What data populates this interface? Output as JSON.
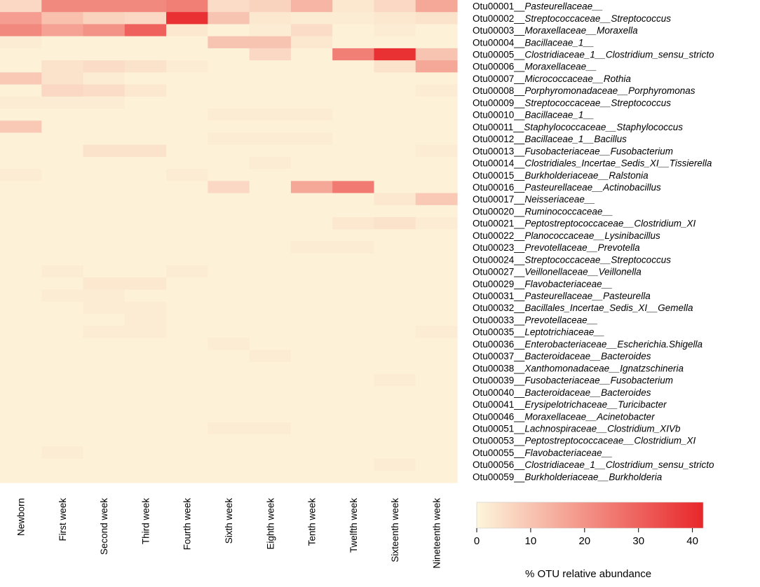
{
  "chart_data": {
    "type": "heatmap",
    "title": "",
    "legend_title": "% OTU relative abundance",
    "legend_range": [
      0,
      42
    ],
    "legend_ticks": [
      0,
      10,
      20,
      30,
      40
    ],
    "color_low": "#fdf6dc",
    "color_high": "#e8262a",
    "columns": [
      "Newborn",
      "First week",
      "Second week",
      "Third week",
      "Fourth week",
      "Sixth week",
      "Eighth week",
      "Tenth week",
      "Twelfth week",
      "Sixteenth week",
      "Nineteenth week"
    ],
    "rows": [
      {
        "id": "Otu00001",
        "taxon": "Pasteurellaceae__"
      },
      {
        "id": "Otu00002",
        "taxon": "Streptococcaceae__Streptococcus"
      },
      {
        "id": "Otu00003",
        "taxon": "Moraxellaceae__Moraxella"
      },
      {
        "id": "Otu00004",
        "taxon": "Bacillaceae_1__"
      },
      {
        "id": "Otu00005",
        "taxon": "Clostridiaceae_1__Clostridium_sensu_stricto"
      },
      {
        "id": "Otu00006",
        "taxon": "Moraxellaceae__"
      },
      {
        "id": "Otu00007",
        "taxon": "Micrococcaceae__Rothia"
      },
      {
        "id": "Otu00008",
        "taxon": "Porphyromonadaceae__Porphyromonas"
      },
      {
        "id": "Otu00009",
        "taxon": "Streptococcaceae__Streptococcus"
      },
      {
        "id": "Otu00010",
        "taxon": "Bacillaceae_1__"
      },
      {
        "id": "Otu00011",
        "taxon": "Staphylococcaceae__Staphylococcus"
      },
      {
        "id": "Otu00012",
        "taxon": "Bacillaceae_1__Bacillus"
      },
      {
        "id": "Otu00013",
        "taxon": "Fusobacteriaceae__Fusobacterium"
      },
      {
        "id": "Otu00014",
        "taxon": "Clostridiales_Incertae_Sedis_XI__Tissierella"
      },
      {
        "id": "Otu00015",
        "taxon": "Burkholderiaceae__Ralstonia"
      },
      {
        "id": "Otu00016",
        "taxon": "Pasteurellaceae__Actinobacillus"
      },
      {
        "id": "Otu00017",
        "taxon": "Neisseriaceae__"
      },
      {
        "id": "Otu00020",
        "taxon": "Ruminococcaceae__"
      },
      {
        "id": "Otu00021",
        "taxon": "Peptostreptococcaceae__Clostridium_XI"
      },
      {
        "id": "Otu00022",
        "taxon": "Planococcaceae__Lysinibacillus"
      },
      {
        "id": "Otu00023",
        "taxon": "Prevotellaceae__Prevotella"
      },
      {
        "id": "Otu00024",
        "taxon": "Streptococcaceae__Streptococcus"
      },
      {
        "id": "Otu00027",
        "taxon": "Veillonellaceae__Veillonella"
      },
      {
        "id": "Otu00029",
        "taxon": "Flavobacteriaceae__"
      },
      {
        "id": "Otu00031",
        "taxon": "Pasteurellaceae__Pasteurella"
      },
      {
        "id": "Otu00032",
        "taxon": "Bacillales_Incertae_Sedis_XI__Gemella"
      },
      {
        "id": "Otu00033",
        "taxon": "Prevotellaceae__"
      },
      {
        "id": "Otu00035",
        "taxon": "Leptotrichiaceae__"
      },
      {
        "id": "Otu00036",
        "taxon": "Enterobacteriaceae__Escherichia.Shigella"
      },
      {
        "id": "Otu00037",
        "taxon": "Bacteroidaceae__Bacteroides"
      },
      {
        "id": "Otu00038",
        "taxon": "Xanthomonadaceae__Ignatzschineria"
      },
      {
        "id": "Otu00039",
        "taxon": "Fusobacteriaceae__Fusobacterium"
      },
      {
        "id": "Otu00040",
        "taxon": "Bacteroidaceae__Bacteroides"
      },
      {
        "id": "Otu00041",
        "taxon": "Erysipelotrichaceae__Turicibacter"
      },
      {
        "id": "Otu00046",
        "taxon": "Moraxellaceae__Acinetobacter"
      },
      {
        "id": "Otu00051",
        "taxon": "Lachnospiraceae__Clostridium_XIVb"
      },
      {
        "id": "Otu00053",
        "taxon": "Peptostreptococcaceae__Clostridium_XI"
      },
      {
        "id": "Otu00055",
        "taxon": "Flavobacteriaceae__"
      },
      {
        "id": "Otu00056",
        "taxon": "Clostridiaceae_1__Clostridium_sensu_stricto"
      },
      {
        "id": "Otu00059",
        "taxon": "Burkholderiaceae__Burkholderia"
      }
    ],
    "values": [
      [
        6,
        22,
        22,
        22,
        24,
        5,
        7,
        13,
        3,
        6,
        16
      ],
      [
        18,
        11,
        7,
        6,
        40,
        10,
        3,
        2,
        2,
        3,
        4
      ],
      [
        22,
        17,
        20,
        30,
        3,
        1,
        2,
        5,
        1,
        2,
        1
      ],
      [
        2,
        1,
        1,
        1,
        1,
        10,
        10,
        3,
        1,
        1,
        1
      ],
      [
        1,
        1,
        1,
        1,
        1,
        1,
        6,
        1,
        24,
        40,
        10
      ],
      [
        1,
        4,
        5,
        4,
        2,
        1,
        1,
        1,
        1,
        4,
        16
      ],
      [
        9,
        4,
        2,
        1,
        1,
        1,
        1,
        1,
        1,
        1,
        1
      ],
      [
        1,
        6,
        5,
        3,
        1,
        1,
        1,
        1,
        1,
        1,
        2
      ],
      [
        2,
        2,
        2,
        1,
        1,
        1,
        1,
        1,
        1,
        1,
        1
      ],
      [
        1,
        1,
        1,
        1,
        1,
        2,
        2,
        2,
        1,
        1,
        1
      ],
      [
        9,
        1,
        1,
        1,
        1,
        1,
        1,
        1,
        1,
        1,
        1
      ],
      [
        1,
        1,
        1,
        1,
        1,
        2,
        2,
        2,
        1,
        1,
        1
      ],
      [
        1,
        1,
        4,
        4,
        1,
        1,
        1,
        1,
        1,
        1,
        2
      ],
      [
        1,
        1,
        1,
        1,
        1,
        1,
        2,
        1,
        1,
        1,
        1
      ],
      [
        2,
        1,
        1,
        1,
        2,
        1,
        1,
        1,
        1,
        1,
        1
      ],
      [
        1,
        1,
        1,
        1,
        1,
        6,
        1,
        16,
        25,
        1,
        1
      ],
      [
        1,
        1,
        1,
        1,
        1,
        1,
        1,
        1,
        1,
        3,
        9
      ],
      [
        1,
        1,
        1,
        1,
        1,
        1,
        1,
        1,
        1,
        1,
        1
      ],
      [
        1,
        1,
        1,
        1,
        1,
        1,
        1,
        1,
        3,
        4,
        2
      ],
      [
        1,
        1,
        1,
        1,
        1,
        1,
        1,
        1,
        1,
        1,
        1
      ],
      [
        1,
        1,
        1,
        1,
        1,
        1,
        1,
        2,
        2,
        1,
        1
      ],
      [
        1,
        1,
        1,
        1,
        1,
        1,
        1,
        1,
        1,
        1,
        1
      ],
      [
        1,
        2,
        1,
        1,
        2,
        1,
        1,
        1,
        1,
        1,
        1
      ],
      [
        1,
        1,
        3,
        3,
        1,
        1,
        1,
        1,
        1,
        1,
        1
      ],
      [
        1,
        2,
        2,
        1,
        1,
        1,
        1,
        1,
        1,
        1,
        1
      ],
      [
        1,
        1,
        2,
        2,
        1,
        1,
        1,
        1,
        1,
        1,
        1
      ],
      [
        1,
        1,
        1,
        2,
        1,
        1,
        1,
        1,
        1,
        1,
        1
      ],
      [
        1,
        1,
        2,
        2,
        1,
        1,
        1,
        1,
        1,
        1,
        2
      ],
      [
        1,
        1,
        1,
        1,
        1,
        2,
        1,
        1,
        1,
        1,
        1
      ],
      [
        1,
        1,
        1,
        1,
        1,
        1,
        2,
        1,
        1,
        1,
        1
      ],
      [
        1,
        1,
        1,
        1,
        1,
        1,
        1,
        1,
        1,
        1,
        1
      ],
      [
        1,
        1,
        1,
        1,
        1,
        1,
        1,
        1,
        1,
        2,
        1
      ],
      [
        1,
        1,
        1,
        1,
        1,
        1,
        1,
        1,
        1,
        1,
        1
      ],
      [
        1,
        1,
        1,
        1,
        1,
        1,
        1,
        1,
        1,
        1,
        1
      ],
      [
        1,
        1,
        1,
        1,
        1,
        1,
        1,
        1,
        1,
        1,
        1
      ],
      [
        1,
        1,
        1,
        1,
        1,
        2,
        2,
        1,
        1,
        1,
        1
      ],
      [
        1,
        1,
        1,
        1,
        1,
        1,
        1,
        1,
        1,
        1,
        1
      ],
      [
        1,
        2,
        1,
        1,
        1,
        1,
        1,
        1,
        1,
        1,
        1
      ],
      [
        1,
        1,
        1,
        1,
        1,
        1,
        1,
        1,
        1,
        2,
        1
      ],
      [
        1,
        1,
        1,
        1,
        1,
        1,
        1,
        1,
        1,
        1,
        1
      ]
    ]
  }
}
